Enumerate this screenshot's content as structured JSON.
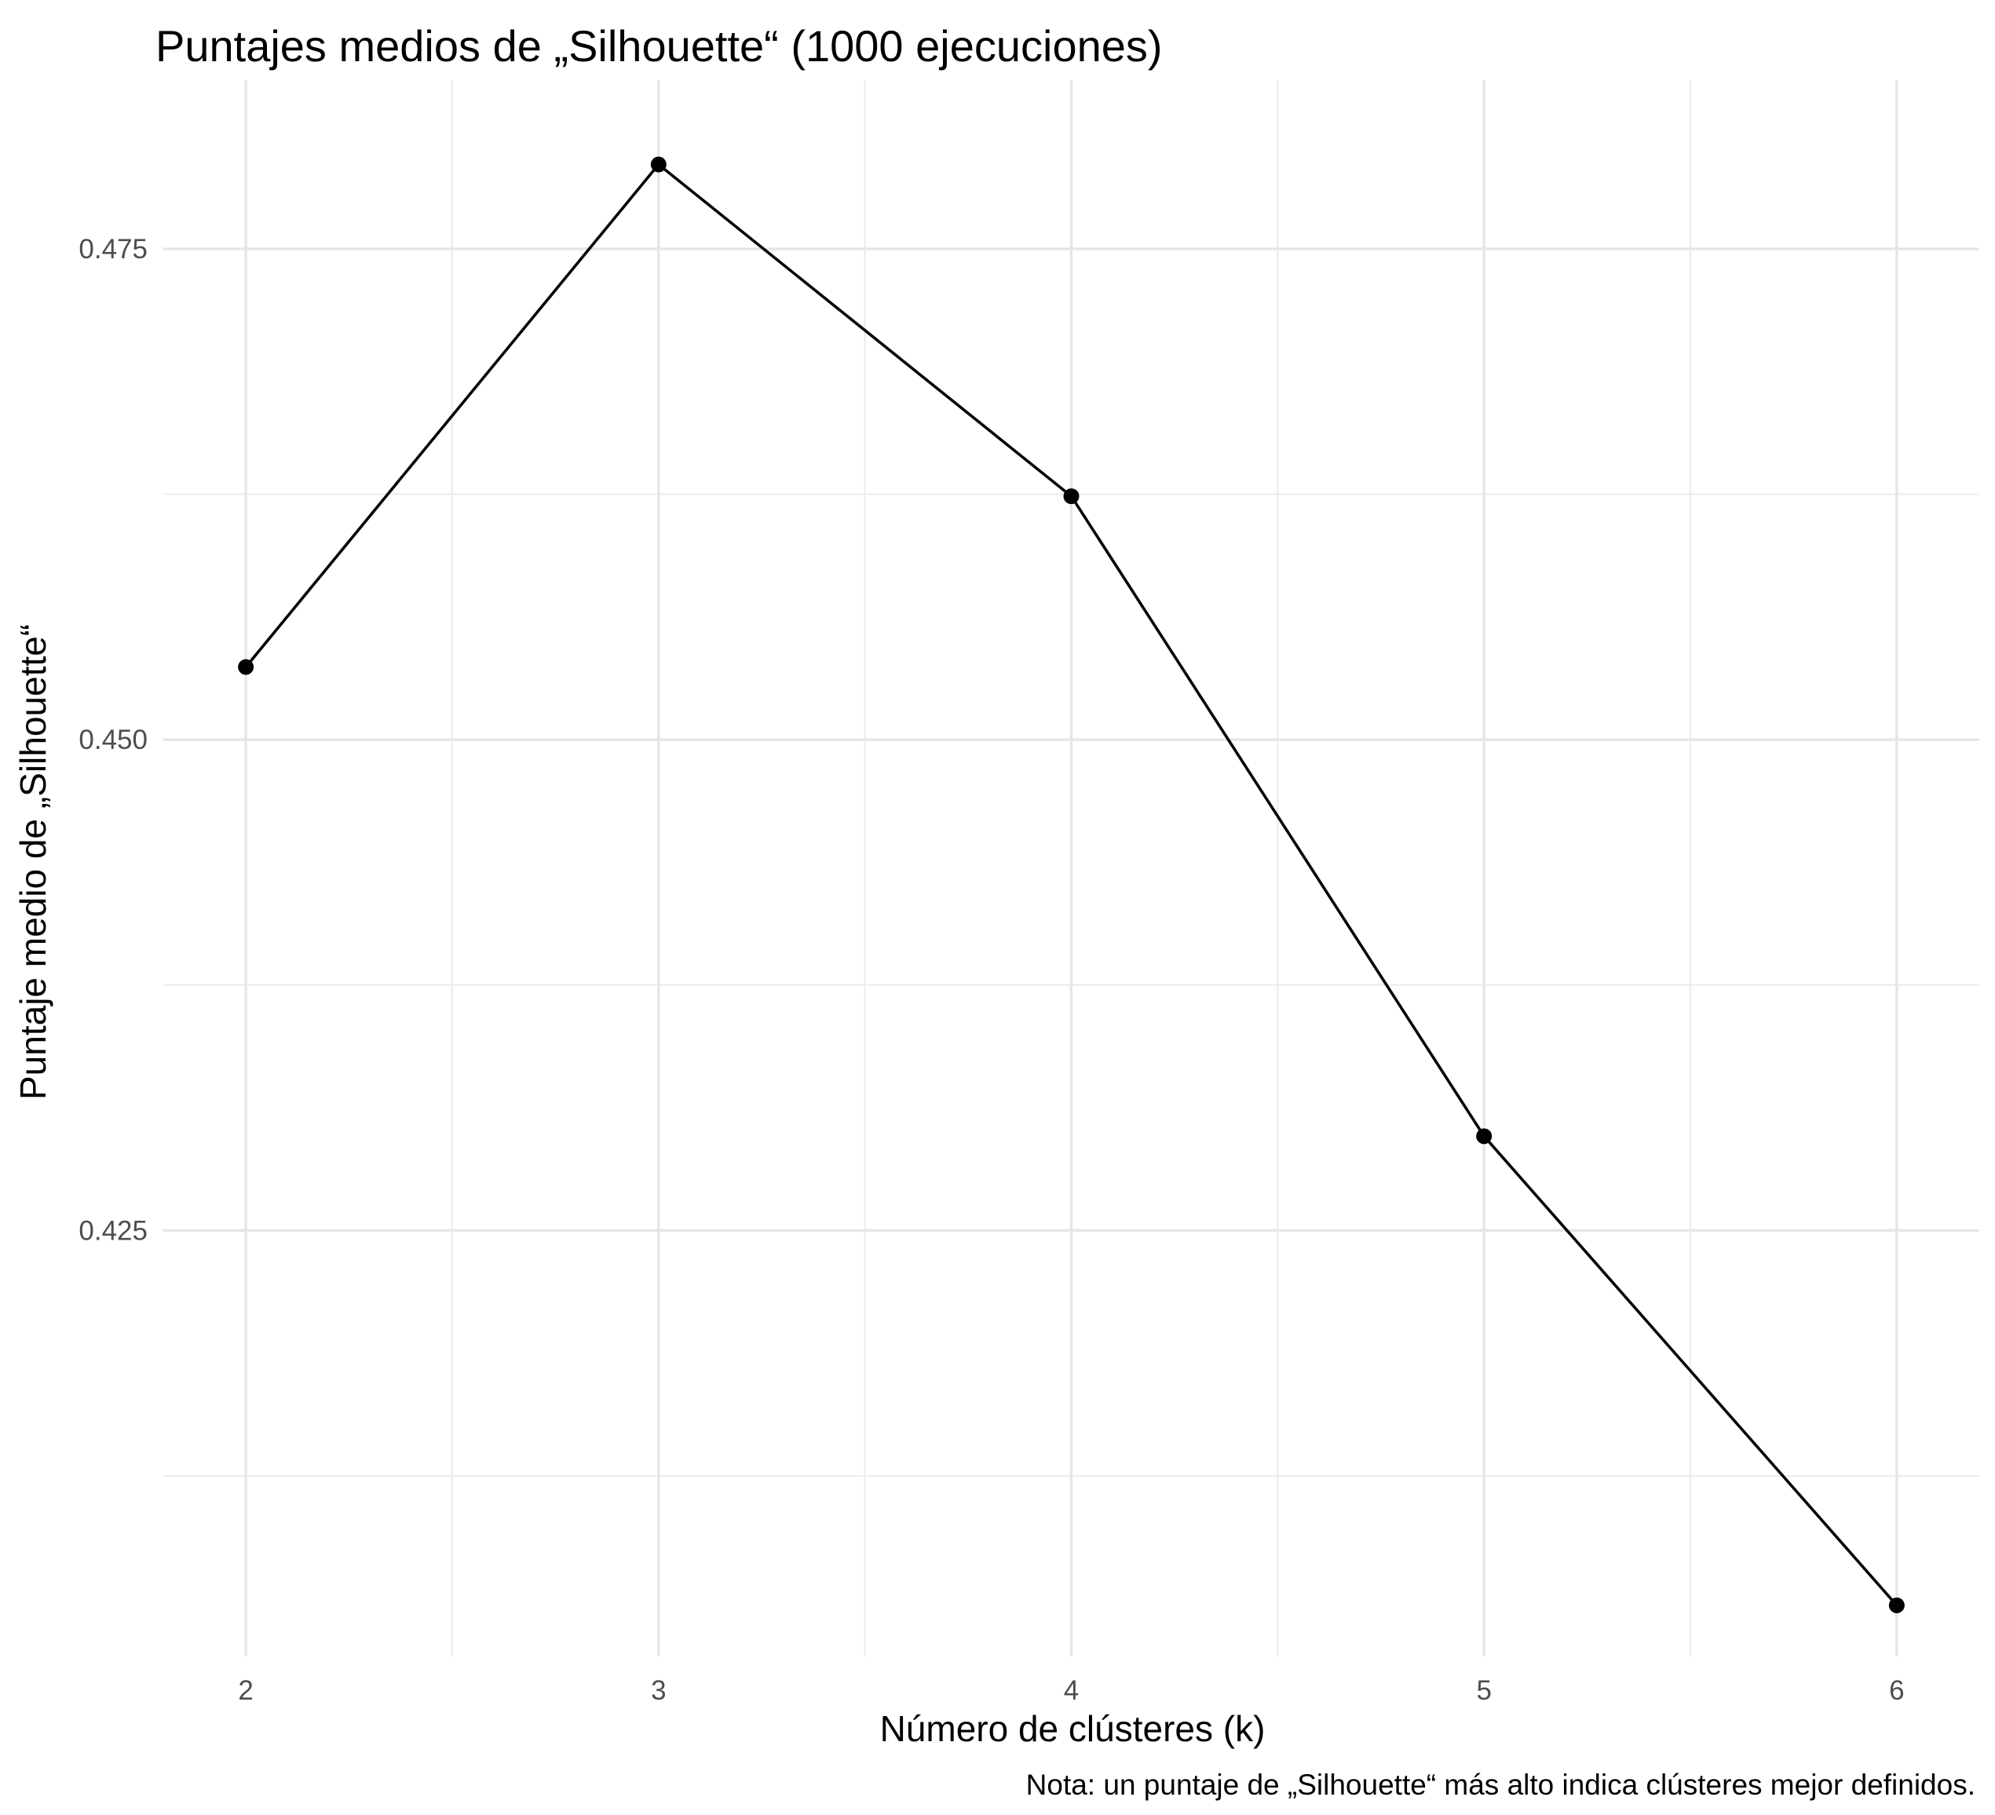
{
  "chart_data": {
    "type": "line",
    "title": "Puntajes medios de „Silhouette“ (1000 ejecuciones)",
    "xlabel": "Número de clústeres (k)",
    "ylabel": "Puntaje medio de „Silhouette“",
    "caption": "Nota: un puntaje de „Silhouette“ más alto indica clústeres mejor definidos.",
    "x": [
      2,
      3,
      4,
      5,
      6
    ],
    "y": [
      0.4537,
      0.4793,
      0.4624,
      0.4298,
      0.4059
    ],
    "x_ticks": [
      2,
      3,
      4,
      5,
      6
    ],
    "y_ticks": [
      0.425,
      0.45,
      0.475
    ],
    "y_tick_labels": [
      "0.425",
      "0.450",
      "0.475"
    ],
    "xlim": [
      1.8,
      6.2
    ],
    "ylim": [
      0.4033,
      0.4836
    ],
    "grid": true,
    "legend": "none",
    "line_color": "#000000",
    "grid_color": "#e6e6e6"
  }
}
